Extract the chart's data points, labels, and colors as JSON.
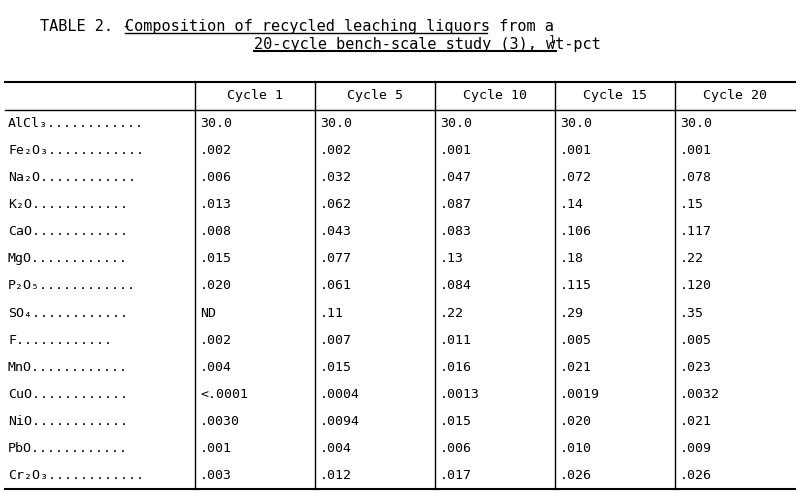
{
  "title_prefix": "TABLE 2. - ",
  "title_underlined": "Composition of recycled leaching liquors from a",
  "subtitle_underlined": "20-cycle bench-scale study (3), wt-pct",
  "subtitle_sup": "1",
  "columns": [
    "Cycle 1",
    "Cycle 5",
    "Cycle 10",
    "Cycle 15",
    "Cycle 20"
  ],
  "row_labels": [
    "AlCl₃",
    "Fe₂O₃",
    "Na₂O",
    "K₂O",
    "CaO",
    "MgO",
    "P₂O₅",
    "SO₄",
    "F",
    "MnO",
    "CuO",
    "NiO",
    "PbO",
    "Cr₂O₃"
  ],
  "dots": "............",
  "values": [
    [
      "30.0",
      "30.0",
      "30.0",
      "30.0",
      "30.0"
    ],
    [
      ".002",
      ".002",
      ".001",
      ".001",
      ".001"
    ],
    [
      ".006",
      ".032",
      ".047",
      ".072",
      ".078"
    ],
    [
      ".013",
      ".062",
      ".087",
      ".14",
      ".15"
    ],
    [
      ".008",
      ".043",
      ".083",
      ".106",
      ".117"
    ],
    [
      ".015",
      ".077",
      ".13",
      ".18",
      ".22"
    ],
    [
      ".020",
      ".061",
      ".084",
      ".115",
      ".120"
    ],
    [
      "ND",
      ".11",
      ".22",
      ".29",
      ".35"
    ],
    [
      ".002",
      ".007",
      ".011",
      ".005",
      ".005"
    ],
    [
      ".004",
      ".015",
      ".016",
      ".021",
      ".023"
    ],
    [
      "<.0001",
      ".0004",
      ".0013",
      ".0019",
      ".0032"
    ],
    [
      ".0030",
      ".0094",
      ".015",
      ".020",
      ".021"
    ],
    [
      ".001",
      ".004",
      ".006",
      ".010",
      ".009"
    ],
    [
      ".003",
      ".012",
      ".017",
      ".026",
      ".026"
    ]
  ],
  "bg_color": "#ffffff",
  "text_color": "#000000",
  "font_size": 9.5,
  "mono_family": "DejaVu Sans Mono"
}
